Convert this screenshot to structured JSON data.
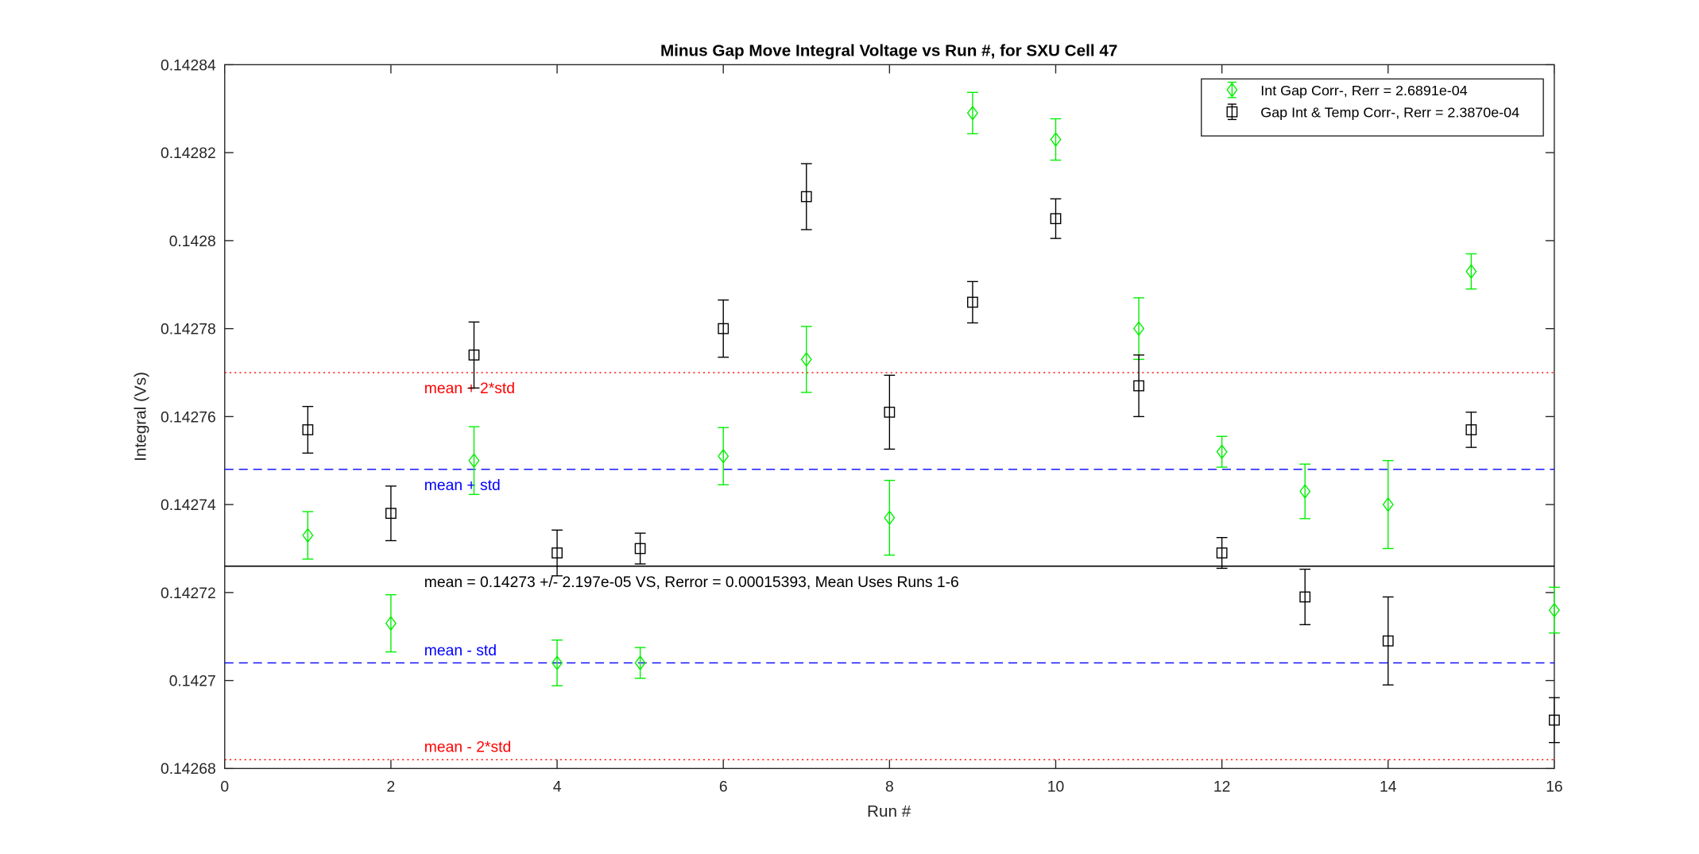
{
  "chart_data": {
    "type": "scatter",
    "title": "Minus Gap Move Integral Voltage vs Run #, for SXU Cell 47",
    "x_label": "Run #",
    "y_label": "Integral (Vs)",
    "x": [
      1,
      2,
      3,
      4,
      5,
      6,
      7,
      8,
      9,
      10,
      11,
      12,
      13,
      14,
      15,
      16
    ],
    "series": [
      {
        "name": "Int Gap Corr-, Rerr = 2.6891e-04",
        "color": "#00ee00",
        "marker": "diamond",
        "values": [
          0.142733,
          0.142713,
          0.14275,
          0.142704,
          0.142704,
          0.142751,
          0.142773,
          0.142737,
          0.142829,
          0.142823,
          0.14278,
          0.142752,
          0.142743,
          0.14274,
          0.142793,
          0.142716
        ],
        "errors": [
          5.4e-06,
          6.5e-06,
          7.7e-06,
          5.2e-06,
          3.5e-06,
          6.5e-06,
          7.5e-06,
          8.5e-06,
          4.7e-06,
          4.7e-06,
          7e-06,
          3.5e-06,
          6.2e-06,
          1e-05,
          4e-06,
          5.2e-06
        ]
      },
      {
        "name": "Gap Int & Temp Corr-, Rerr = 2.3870e-04",
        "color": "#000000",
        "marker": "square",
        "values": [
          0.142757,
          0.142738,
          0.142774,
          0.142729,
          0.14273,
          0.14278,
          0.14281,
          0.142761,
          0.142786,
          0.142805,
          0.142767,
          0.142729,
          0.142719,
          0.142709,
          0.142757,
          0.142691
        ],
        "errors": [
          5.3e-06,
          6.2e-06,
          7.5e-06,
          5.2e-06,
          3.5e-06,
          6.5e-06,
          7.5e-06,
          8.4e-06,
          4.7e-06,
          4.5e-06,
          7e-06,
          3.5e-06,
          6.3e-06,
          1e-05,
          4e-06,
          5.1e-06
        ]
      }
    ],
    "reference_lines": [
      {
        "label": "mean + 2*std",
        "value": 0.14277,
        "color": "#ff0000",
        "style": "dotted",
        "label_side": "below"
      },
      {
        "label": "mean + std",
        "value": 0.142748,
        "color": "#0000ff",
        "style": "dashed",
        "label_side": "below"
      },
      {
        "label": "mean = 0.14273 +/- 2.197e-05 VS, Rerror = 0.00015393, Mean Uses Runs 1-6",
        "value": 0.142726,
        "color": "#000000",
        "style": "solid",
        "label_side": "below"
      },
      {
        "label": "mean - std",
        "value": 0.142704,
        "color": "#0000ff",
        "style": "dashed",
        "label_side": "above"
      },
      {
        "label": "mean - 2*std",
        "value": 0.142682,
        "color": "#ff0000",
        "style": "dotted",
        "label_side": "above"
      }
    ],
    "xlim": [
      0,
      16
    ],
    "xticks": [
      0,
      2,
      4,
      6,
      8,
      10,
      12,
      14,
      16
    ],
    "ylim": [
      0.14268,
      0.14284
    ],
    "yticks": [
      0.14268,
      0.1427,
      0.14272,
      0.14274,
      0.14276,
      0.14278,
      0.1428,
      0.14282,
      0.14284
    ],
    "legend": "top-right",
    "grid": false
  }
}
